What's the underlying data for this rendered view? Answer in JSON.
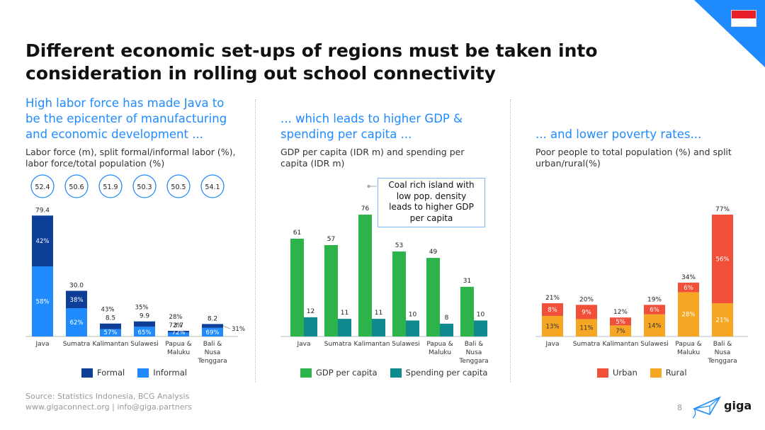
{
  "title_line1": "Different economic set-ups of regions must be taken into",
  "title_line2": "consideration in rolling out school connectivity",
  "brand_color": "#1f8bff",
  "flag": "indonesia-flag",
  "panels": [
    {
      "heading": [
        "High labor force has made Java to",
        "be the epicenter of manufacturing",
        "and economic development ..."
      ],
      "sub": [
        "Labor force (m), split formal/informal labor (%),",
        "labor force/total population (%)"
      ]
    },
    {
      "heading": [
        "... which leads to higher GDP &",
        "spending per capita ..."
      ],
      "sub": [
        "GDP per capita (IDR m) and spending per",
        "capita (IDR m)"
      ]
    },
    {
      "heading": [
        "... and lower poverty rates..."
      ],
      "sub": [
        "Poor people to total population (%) and split",
        "urban/rural(%)"
      ]
    }
  ],
  "callout": [
    "Coal rich island with",
    "low pop. density",
    "leads to higher GDP",
    "per capita"
  ],
  "footer": {
    "source": "Source: Statistics Indonesia, BCG Analysis",
    "contact": "www.gigaconnect.org  |  info@giga.partners",
    "page": "8",
    "logo": "giga"
  },
  "chart_data": [
    {
      "type": "bar",
      "stacked": true,
      "categories": [
        "Java",
        "Sumatra",
        "Kalimantan",
        "Sulawesi",
        "Papua & Maluku",
        "Bali & Nusa Tenggara"
      ],
      "category_lines": [
        [
          "Java"
        ],
        [
          "Sumatra"
        ],
        [
          "Kalimantan"
        ],
        [
          "Sulawesi"
        ],
        [
          "Papua &",
          "Maluku"
        ],
        [
          "Bali &",
          "Nusa",
          "Tenggara"
        ]
      ],
      "totals": [
        79.4,
        30.0,
        8.5,
        9.9,
        3.7,
        8.2
      ],
      "total_labels": [
        "79.4",
        "30.0",
        "8.5",
        "9.9",
        "3.7",
        "8.2"
      ],
      "labor_force_to_population": [
        "52.4",
        "50.6",
        "51.9",
        "50.3",
        "50.5",
        "54.1"
      ],
      "series": [
        {
          "name": "Formal",
          "color": "#0d3f99",
          "shares": [
            0.42,
            0.38,
            0.43,
            0.35,
            0.28,
            0.31
          ],
          "labels": [
            "42%",
            "38%",
            "43%",
            "35%",
            "28%",
            "31%"
          ]
        },
        {
          "name": "Informal",
          "color": "#1f8bff",
          "shares": [
            0.58,
            0.62,
            0.57,
            0.65,
            0.72,
            0.69
          ],
          "labels": [
            "58%",
            "62%",
            "57%",
            "65%",
            "72%",
            "69%"
          ]
        }
      ],
      "ylim": [
        0,
        80
      ]
    },
    {
      "type": "bar",
      "categories": [
        "Java",
        "Sumatra",
        "Kalimantan",
        "Sulawesi",
        "Papua & Maluku",
        "Bali & Nusa Tenggara"
      ],
      "category_lines": [
        [
          "Java"
        ],
        [
          "Sumatra"
        ],
        [
          "Kalimantan"
        ],
        [
          "Sulawesi"
        ],
        [
          "Papua &",
          "Maluku"
        ],
        [
          "Bali &",
          "Nusa",
          "Tenggara"
        ]
      ],
      "series": [
        {
          "name": "GDP per capita",
          "color": "#2cb34a",
          "values": [
            61,
            57,
            76,
            53,
            49,
            31
          ],
          "labels": [
            "61",
            "57",
            "76",
            "53",
            "49",
            "31"
          ]
        },
        {
          "name": "Spending per capita",
          "color": "#0f8a8f",
          "values": [
            12,
            11,
            11,
            10,
            8,
            10
          ],
          "labels": [
            "12",
            "11",
            "11",
            "10",
            "8",
            "10"
          ]
        }
      ],
      "ylim": [
        0,
        76
      ]
    },
    {
      "type": "bar",
      "stacked": true,
      "categories": [
        "Java",
        "Sumatra",
        "Kalimantan",
        "Sulawesi",
        "Papua & Maluku",
        "Bali & Nusa Tenggara"
      ],
      "category_lines": [
        [
          "Java"
        ],
        [
          "Sumatra"
        ],
        [
          "Kalimantan"
        ],
        [
          "Sulawesi"
        ],
        [
          "Papua &",
          "Maluku"
        ],
        [
          "Bali &",
          "Nusa",
          "Tenggara"
        ]
      ],
      "totals": [
        21,
        20,
        12,
        19,
        34,
        77
      ],
      "total_labels": [
        "21%",
        "20%",
        "12%",
        "19%",
        "34%",
        "77%"
      ],
      "series": [
        {
          "name": "Rural",
          "color": "#f5a623",
          "values": [
            13,
            11,
            7,
            14,
            28,
            21
          ],
          "labels": [
            "13%",
            "11%",
            "7%",
            "14%",
            "28%",
            "21%"
          ]
        },
        {
          "name": "Urban",
          "color": "#f0503a",
          "values": [
            8,
            9,
            5,
            6,
            6,
            56
          ],
          "labels": [
            "8%",
            "9%",
            "5%",
            "6%",
            "6%",
            "56%"
          ]
        }
      ],
      "legend_order": [
        "Urban",
        "Rural"
      ],
      "ylim": [
        0,
        77
      ]
    }
  ]
}
